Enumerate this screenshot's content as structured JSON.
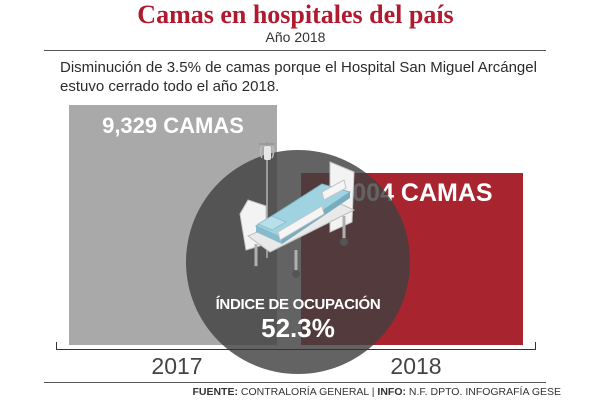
{
  "title": "Camas en hospitales del país",
  "subtitle": "Año 2018",
  "description": "Disminución de 3.5% de camas porque el Hospital San Miguel Arcángel estuvo cerrado todo el año 2018.",
  "occupancy": {
    "label": "ÍNDICE DE OCUPACIÓN",
    "value": "52.3%"
  },
  "footer": {
    "source_label": "FUENTE:",
    "source": " CONTRALORÍA GENERAL | ",
    "info_label": "INFO:",
    "info": " N.F. DPTO. INFOGRAFÍA GESE"
  },
  "colors": {
    "title": "#b0192e",
    "bar_2017": "#a9a9a9",
    "bar_2018": "#a8242f",
    "circle": "#414141"
  },
  "icons": [
    "hospital-bed-icon"
  ],
  "chart_data": {
    "type": "bar",
    "title": "Camas en hospitales del país",
    "subtitle": "Año 2018",
    "categories": [
      "2017",
      "2018"
    ],
    "values": [
      9329,
      9004
    ],
    "data_labels": [
      "9,329 CAMAS",
      "9,004 CAMAS"
    ],
    "annotations": [
      "Disminución de 3.5% de camas porque el Hospital San Miguel Arcángel estuvo cerrado todo el año 2018.",
      "ÍNDICE DE OCUPACIÓN 52.3%"
    ],
    "xlabel": "",
    "ylabel": "",
    "grid": false,
    "legend": "none"
  }
}
